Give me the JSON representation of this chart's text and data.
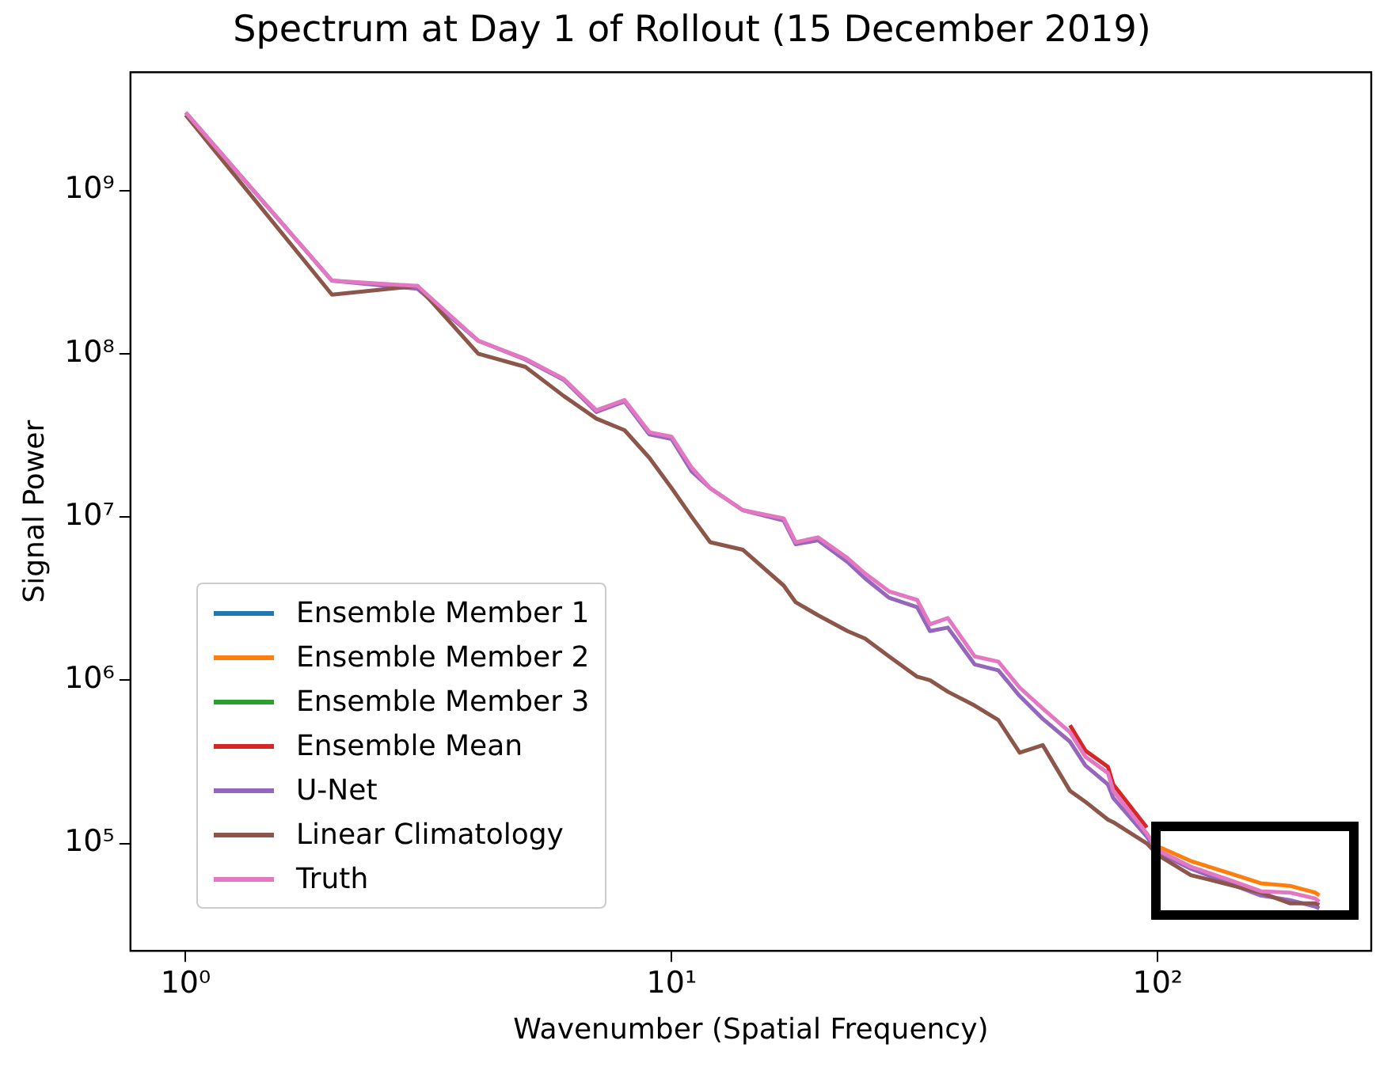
{
  "chart_data": {
    "type": "line",
    "title": "Spectrum at Day 1 of Rollout (15 December 2019)",
    "xlabel": "Wavenumber (Spatial Frequency)",
    "ylabel": "Signal Power",
    "log": "xy",
    "grid": false,
    "legend": "bottom left",
    "marker": "none",
    "line_style": "solid",
    "xlim": [
      0.77,
      275
    ],
    "ylim": [
      22000,
      5300000000
    ],
    "xticks": [
      {
        "value": 1,
        "label": "10⁰"
      },
      {
        "value": 10,
        "label": "10¹"
      },
      {
        "value": 100,
        "label": "10²"
      }
    ],
    "yticks": [
      {
        "value": 100000,
        "label": "10⁵"
      },
      {
        "value": 1000000,
        "label": "10⁶"
      },
      {
        "value": 10000000,
        "label": "10⁷"
      },
      {
        "value": 100000000,
        "label": "10⁸"
      },
      {
        "value": 1000000000,
        "label": "10⁹"
      }
    ],
    "x": [
      1,
      2,
      3,
      4,
      5,
      6,
      7,
      8,
      9,
      10,
      11,
      12,
      14,
      17,
      18,
      20,
      23,
      25,
      28,
      32,
      34,
      37,
      42,
      47,
      52,
      58,
      66,
      71,
      79,
      81,
      95,
      100,
      117,
      140,
      163,
      187,
      211,
      215
    ],
    "series": [
      {
        "name": "Ensemble Member 1",
        "color": "#1f77b4",
        "values": [
          null,
          null,
          null,
          null,
          null,
          null,
          null,
          null,
          null,
          null,
          null,
          null,
          null,
          null,
          null,
          null,
          null,
          null,
          null,
          null,
          null,
          null,
          null,
          null,
          null,
          null,
          null,
          null,
          null,
          null,
          null,
          null,
          null,
          null,
          null,
          null,
          null,
          null
        ]
      },
      {
        "name": "Ensemble Member 2",
        "color": "#ff7f0e",
        "values": [
          null,
          null,
          null,
          null,
          null,
          null,
          null,
          null,
          null,
          null,
          null,
          null,
          null,
          null,
          null,
          null,
          null,
          null,
          null,
          null,
          null,
          null,
          null,
          null,
          null,
          null,
          null,
          null,
          null,
          null,
          null,
          96000.0,
          78000.0,
          66000.0,
          57000.0,
          55000.0,
          50000.0,
          48000.0
        ]
      },
      {
        "name": "Ensemble Member 3",
        "color": "#2ca02c",
        "values": [
          null,
          null,
          null,
          null,
          null,
          null,
          null,
          null,
          null,
          null,
          null,
          null,
          null,
          null,
          null,
          null,
          null,
          null,
          null,
          null,
          null,
          null,
          null,
          null,
          null,
          null,
          null,
          null,
          null,
          null,
          null,
          null,
          null,
          null,
          null,
          null,
          null,
          null
        ]
      },
      {
        "name": "Ensemble Mean",
        "color": "#d62728",
        "values": [
          null,
          null,
          null,
          null,
          null,
          null,
          null,
          null,
          null,
          null,
          null,
          null,
          null,
          null,
          null,
          null,
          null,
          null,
          null,
          null,
          null,
          null,
          null,
          null,
          null,
          null,
          530000.0,
          370000.0,
          295000.0,
          230000.0,
          125000.0,
          null,
          null,
          null,
          null,
          null,
          null,
          null
        ]
      },
      {
        "name": "U-Net",
        "color": "#9467bd",
        "values": [
          3000000000.0,
          280000000.0,
          250000000.0,
          120000000.0,
          92000000.0,
          69000000.0,
          44000000.0,
          51000000.0,
          32000000.0,
          30000000.0,
          19000000.0,
          15000000.0,
          11000000.0,
          9500000.0,
          6800000.0,
          7200000.0,
          5300000.0,
          4200000.0,
          3200000.0,
          2800000.0,
          2000000.0,
          2100000.0,
          1250000.0,
          1150000.0,
          800000.0,
          580000.0,
          420000.0,
          300000.0,
          230000.0,
          190000.0,
          110000.0,
          88000.0,
          70000.0,
          57000.0,
          48000.0,
          45000.0,
          41000.0,
          40000.0
        ]
      },
      {
        "name": "Linear Climatology",
        "color": "#8c564b",
        "values": [
          2900000000.0,
          230000000.0,
          260000000.0,
          100000000.0,
          83000000.0,
          55000000.0,
          40000000.0,
          34000000.0,
          23000000.0,
          15000000.0,
          10000000.0,
          7000000.0,
          6300000.0,
          3800000.0,
          3000000.0,
          2500000.0,
          2000000.0,
          1800000.0,
          1400000.0,
          1050000.0,
          1000000.0,
          850000.0,
          700000.0,
          570000.0,
          360000.0,
          400000.0,
          210000.0,
          180000.0,
          140000.0,
          135000.0,
          100000.0,
          85000.0,
          64000.0,
          56000.0,
          50000.0,
          43000.0,
          43000.0,
          42000.0
        ]
      },
      {
        "name": "Truth",
        "color": "#e377c2",
        "values": [
          3000000000.0,
          280000000.0,
          260000000.0,
          120000000.0,
          93000000.0,
          70000000.0,
          45000000.0,
          52000000.0,
          33000000.0,
          31000000.0,
          20000000.0,
          15000000.0,
          11000000.0,
          9800000.0,
          7000000.0,
          7500000.0,
          5600000.0,
          4500000.0,
          3500000.0,
          3100000.0,
          2200000.0,
          2400000.0,
          1400000.0,
          1300000.0,
          900000.0,
          670000.0,
          480000.0,
          340000.0,
          270000.0,
          210000.0,
          115000.0,
          91000.0,
          72000.0,
          60000.0,
          51000.0,
          50000.0,
          46000.0,
          44000.0
        ]
      }
    ]
  }
}
